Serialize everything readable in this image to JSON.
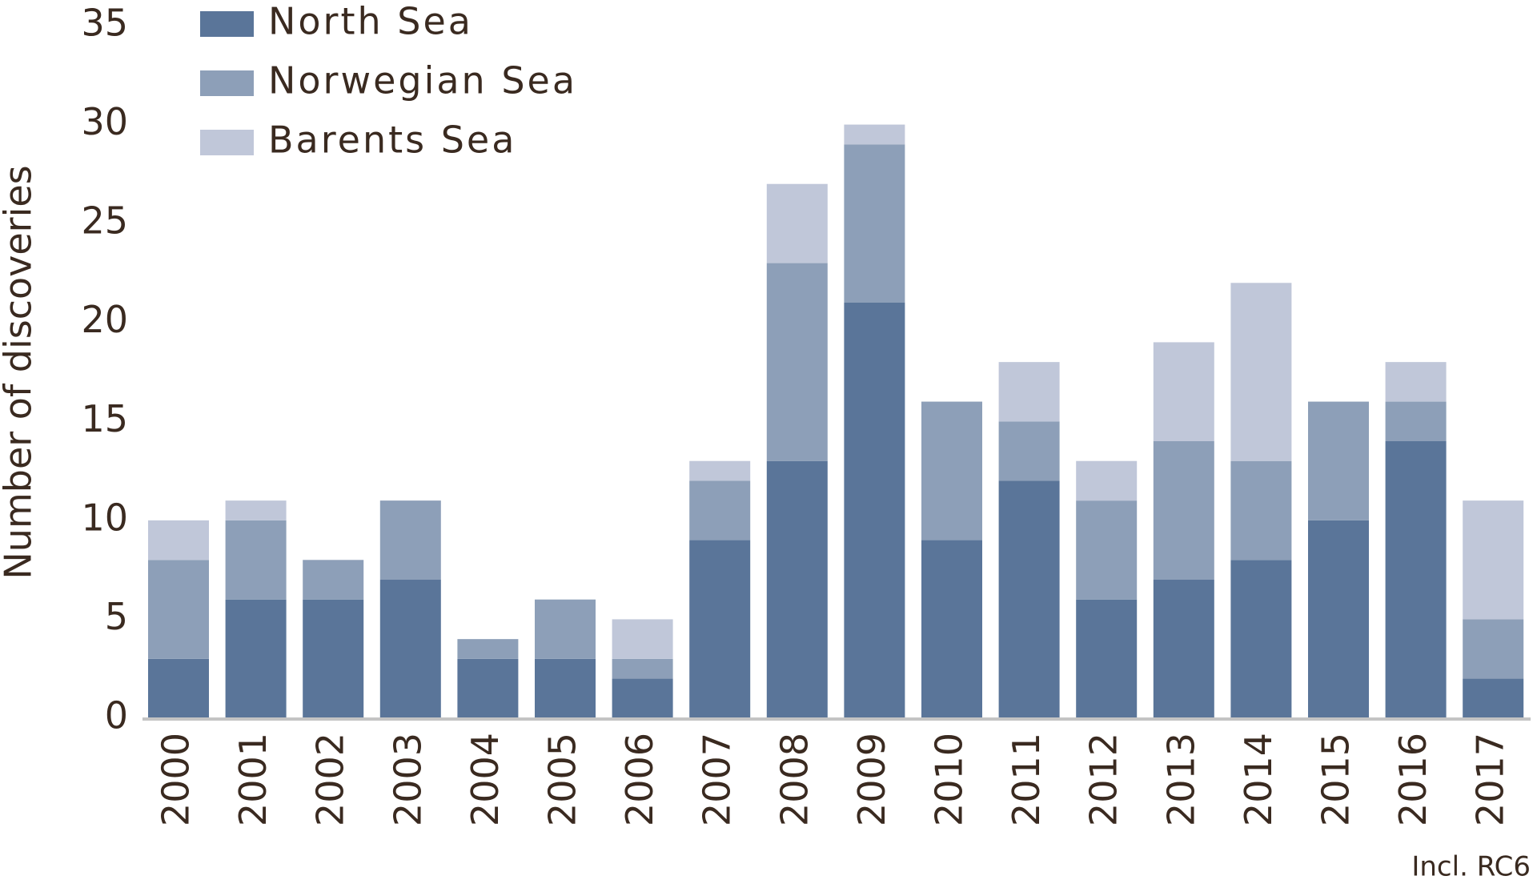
{
  "chart_data": {
    "type": "stacked_bar",
    "y_label": "Number of discoveries",
    "note": "Incl. RC6",
    "categories": [
      "2000",
      "2001",
      "2002",
      "2003",
      "2004",
      "2005",
      "2006",
      "2007",
      "2008",
      "2009",
      "2010",
      "2011",
      "2012",
      "2013",
      "2014",
      "2015",
      "2016",
      "2017"
    ],
    "series": [
      {
        "name": "North Sea",
        "color": "#5a7599",
        "values": [
          3,
          6,
          6,
          7,
          3,
          3,
          2,
          9,
          13,
          21,
          9,
          12,
          6,
          7,
          8,
          10,
          14,
          2
        ]
      },
      {
        "name": "Norwegian Sea",
        "color": "#8d9fb8",
        "values": [
          5,
          4,
          2,
          4,
          1,
          3,
          1,
          3,
          10,
          8,
          7,
          3,
          5,
          7,
          5,
          6,
          2,
          3
        ]
      },
      {
        "name": "Barents Sea",
        "color": "#c0c7d9",
        "values": [
          2,
          1,
          0,
          0,
          0,
          0,
          2,
          1,
          4,
          1,
          0,
          3,
          2,
          5,
          9,
          0,
          2,
          6
        ]
      }
    ],
    "ylim": [
      0,
      35
    ],
    "yticks": [
      0,
      5,
      10,
      15,
      20,
      25,
      30,
      35
    ],
    "grid": false,
    "legend": "top-left"
  }
}
